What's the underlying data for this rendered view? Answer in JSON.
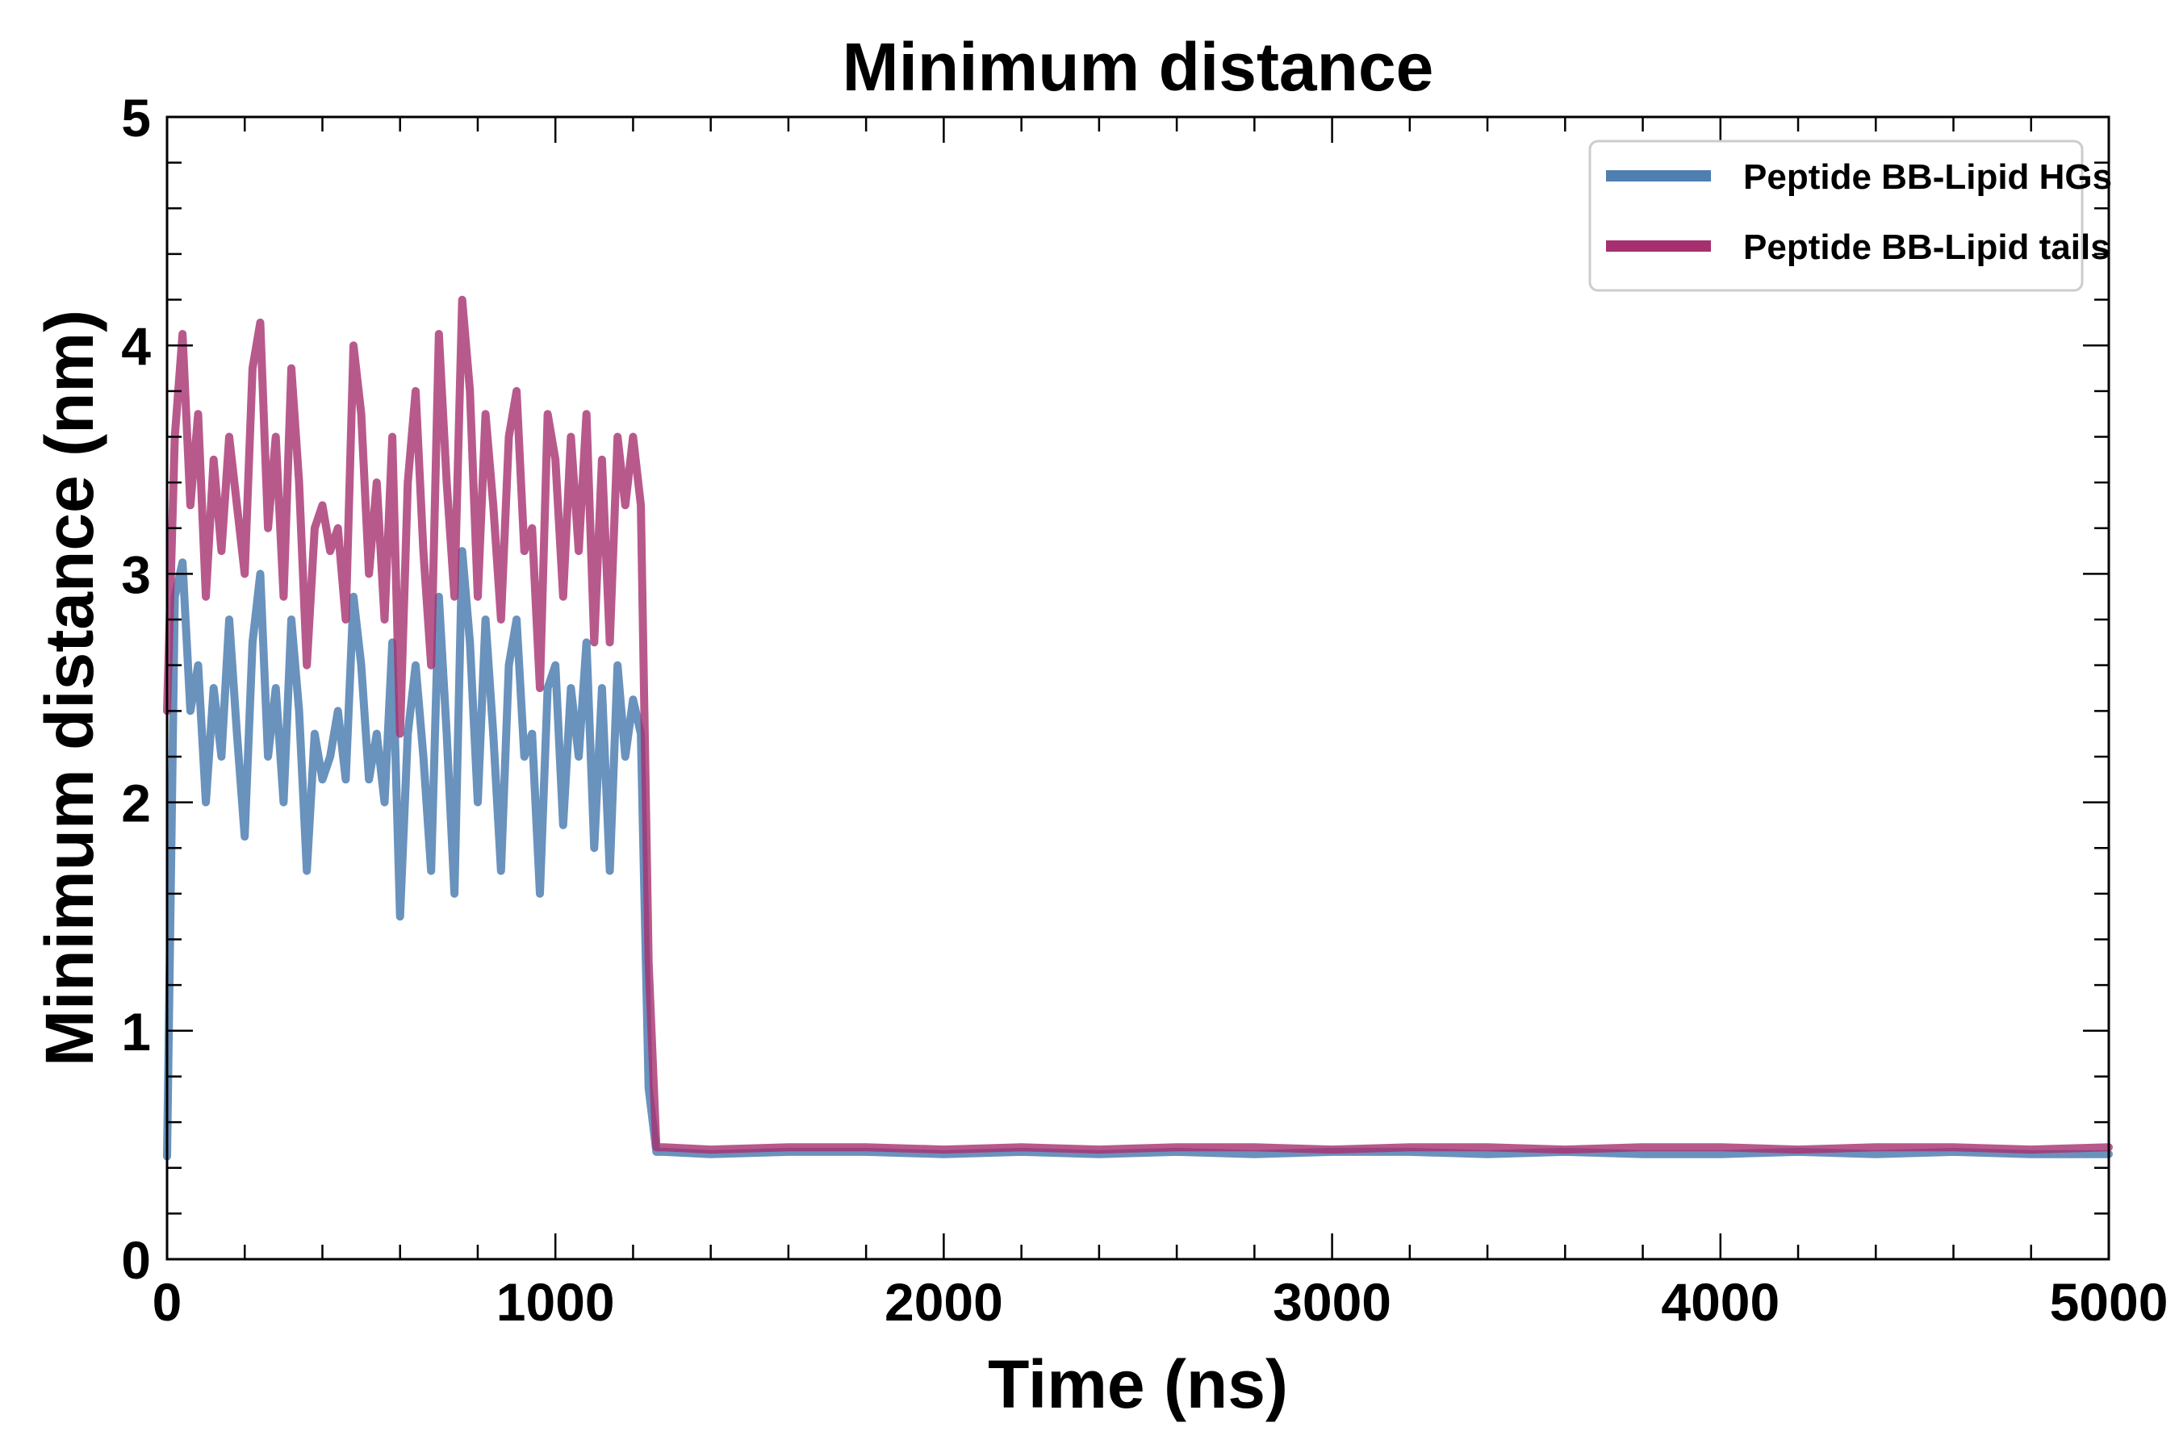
{
  "chart_data": {
    "type": "line",
    "title": "Minimum distance",
    "xlabel": "Time (ns)",
    "ylabel": "Minimum distance (nm)",
    "xlim": [
      0,
      5000
    ],
    "ylim": [
      0,
      5
    ],
    "x_ticks": [
      0,
      1000,
      2000,
      3000,
      4000,
      5000
    ],
    "x_tick_labels": [
      "0",
      "1000",
      "2000",
      "3000",
      "4000",
      "5000"
    ],
    "y_ticks": [
      0,
      1,
      2,
      3,
      4,
      5
    ],
    "y_tick_labels": [
      "0",
      "1",
      "2",
      "3",
      "4",
      "5"
    ],
    "grid": false,
    "legend_position": "top-right",
    "series": [
      {
        "name": "Peptide BB-Lipid HGs",
        "color": "#4f7fb1",
        "x": [
          0,
          20,
          40,
          60,
          80,
          100,
          120,
          140,
          160,
          180,
          200,
          220,
          240,
          260,
          280,
          300,
          320,
          340,
          360,
          380,
          400,
          420,
          440,
          460,
          480,
          500,
          520,
          540,
          560,
          580,
          600,
          620,
          640,
          660,
          680,
          700,
          720,
          740,
          760,
          780,
          800,
          820,
          840,
          860,
          880,
          900,
          920,
          940,
          960,
          980,
          1000,
          1020,
          1040,
          1060,
          1080,
          1100,
          1120,
          1140,
          1160,
          1180,
          1200,
          1220,
          1240,
          1260,
          1280,
          1400,
          1600,
          1800,
          2000,
          2200,
          2400,
          2600,
          2800,
          3000,
          3200,
          3400,
          3600,
          3800,
          4000,
          4200,
          4400,
          4600,
          4800,
          5000
        ],
        "values": [
          0.45,
          2.9,
          3.05,
          2.4,
          2.6,
          2.0,
          2.5,
          2.2,
          2.8,
          2.3,
          1.85,
          2.7,
          3.0,
          2.2,
          2.5,
          2.0,
          2.8,
          2.4,
          1.7,
          2.3,
          2.1,
          2.2,
          2.4,
          2.1,
          2.9,
          2.6,
          2.1,
          2.3,
          2.0,
          2.7,
          1.5,
          2.3,
          2.6,
          2.2,
          1.7,
          2.9,
          2.3,
          1.6,
          3.1,
          2.7,
          2.0,
          2.8,
          2.3,
          1.7,
          2.6,
          2.8,
          2.2,
          2.3,
          1.6,
          2.5,
          2.6,
          1.9,
          2.5,
          2.2,
          2.7,
          1.8,
          2.5,
          1.7,
          2.6,
          2.2,
          2.45,
          2.3,
          0.75,
          0.47,
          0.47,
          0.46,
          0.47,
          0.47,
          0.46,
          0.47,
          0.46,
          0.47,
          0.46,
          0.47,
          0.47,
          0.46,
          0.47,
          0.46,
          0.46,
          0.47,
          0.46,
          0.47,
          0.46,
          0.46
        ]
      },
      {
        "name": "Peptide BB-Lipid tails",
        "color": "#a6306f",
        "x": [
          0,
          20,
          40,
          60,
          80,
          100,
          120,
          140,
          160,
          180,
          200,
          220,
          240,
          260,
          280,
          300,
          320,
          340,
          360,
          380,
          400,
          420,
          440,
          460,
          480,
          500,
          520,
          540,
          560,
          580,
          600,
          620,
          640,
          660,
          680,
          700,
          720,
          740,
          760,
          780,
          800,
          820,
          840,
          860,
          880,
          900,
          920,
          940,
          960,
          980,
          1000,
          1020,
          1040,
          1060,
          1080,
          1100,
          1120,
          1140,
          1160,
          1180,
          1200,
          1220,
          1240,
          1260,
          1280,
          1400,
          1600,
          1800,
          2000,
          2200,
          2400,
          2600,
          2800,
          3000,
          3200,
          3400,
          3600,
          3800,
          4000,
          4200,
          4400,
          4600,
          4800,
          5000
        ],
        "values": [
          2.4,
          3.6,
          4.05,
          3.3,
          3.7,
          2.9,
          3.5,
          3.1,
          3.6,
          3.3,
          3.0,
          3.9,
          4.1,
          3.2,
          3.6,
          2.9,
          3.9,
          3.4,
          2.6,
          3.2,
          3.3,
          3.1,
          3.2,
          2.8,
          4.0,
          3.7,
          3.0,
          3.4,
          2.8,
          3.6,
          2.3,
          3.4,
          3.8,
          3.1,
          2.6,
          4.05,
          3.4,
          2.9,
          4.2,
          3.8,
          2.9,
          3.7,
          3.3,
          2.8,
          3.6,
          3.8,
          3.1,
          3.2,
          2.5,
          3.7,
          3.5,
          2.9,
          3.6,
          3.1,
          3.7,
          2.7,
          3.5,
          2.7,
          3.6,
          3.3,
          3.6,
          3.3,
          1.3,
          0.49,
          0.49,
          0.48,
          0.49,
          0.49,
          0.48,
          0.49,
          0.48,
          0.49,
          0.49,
          0.48,
          0.49,
          0.49,
          0.48,
          0.49,
          0.49,
          0.48,
          0.49,
          0.49,
          0.48,
          0.49
        ]
      }
    ]
  }
}
